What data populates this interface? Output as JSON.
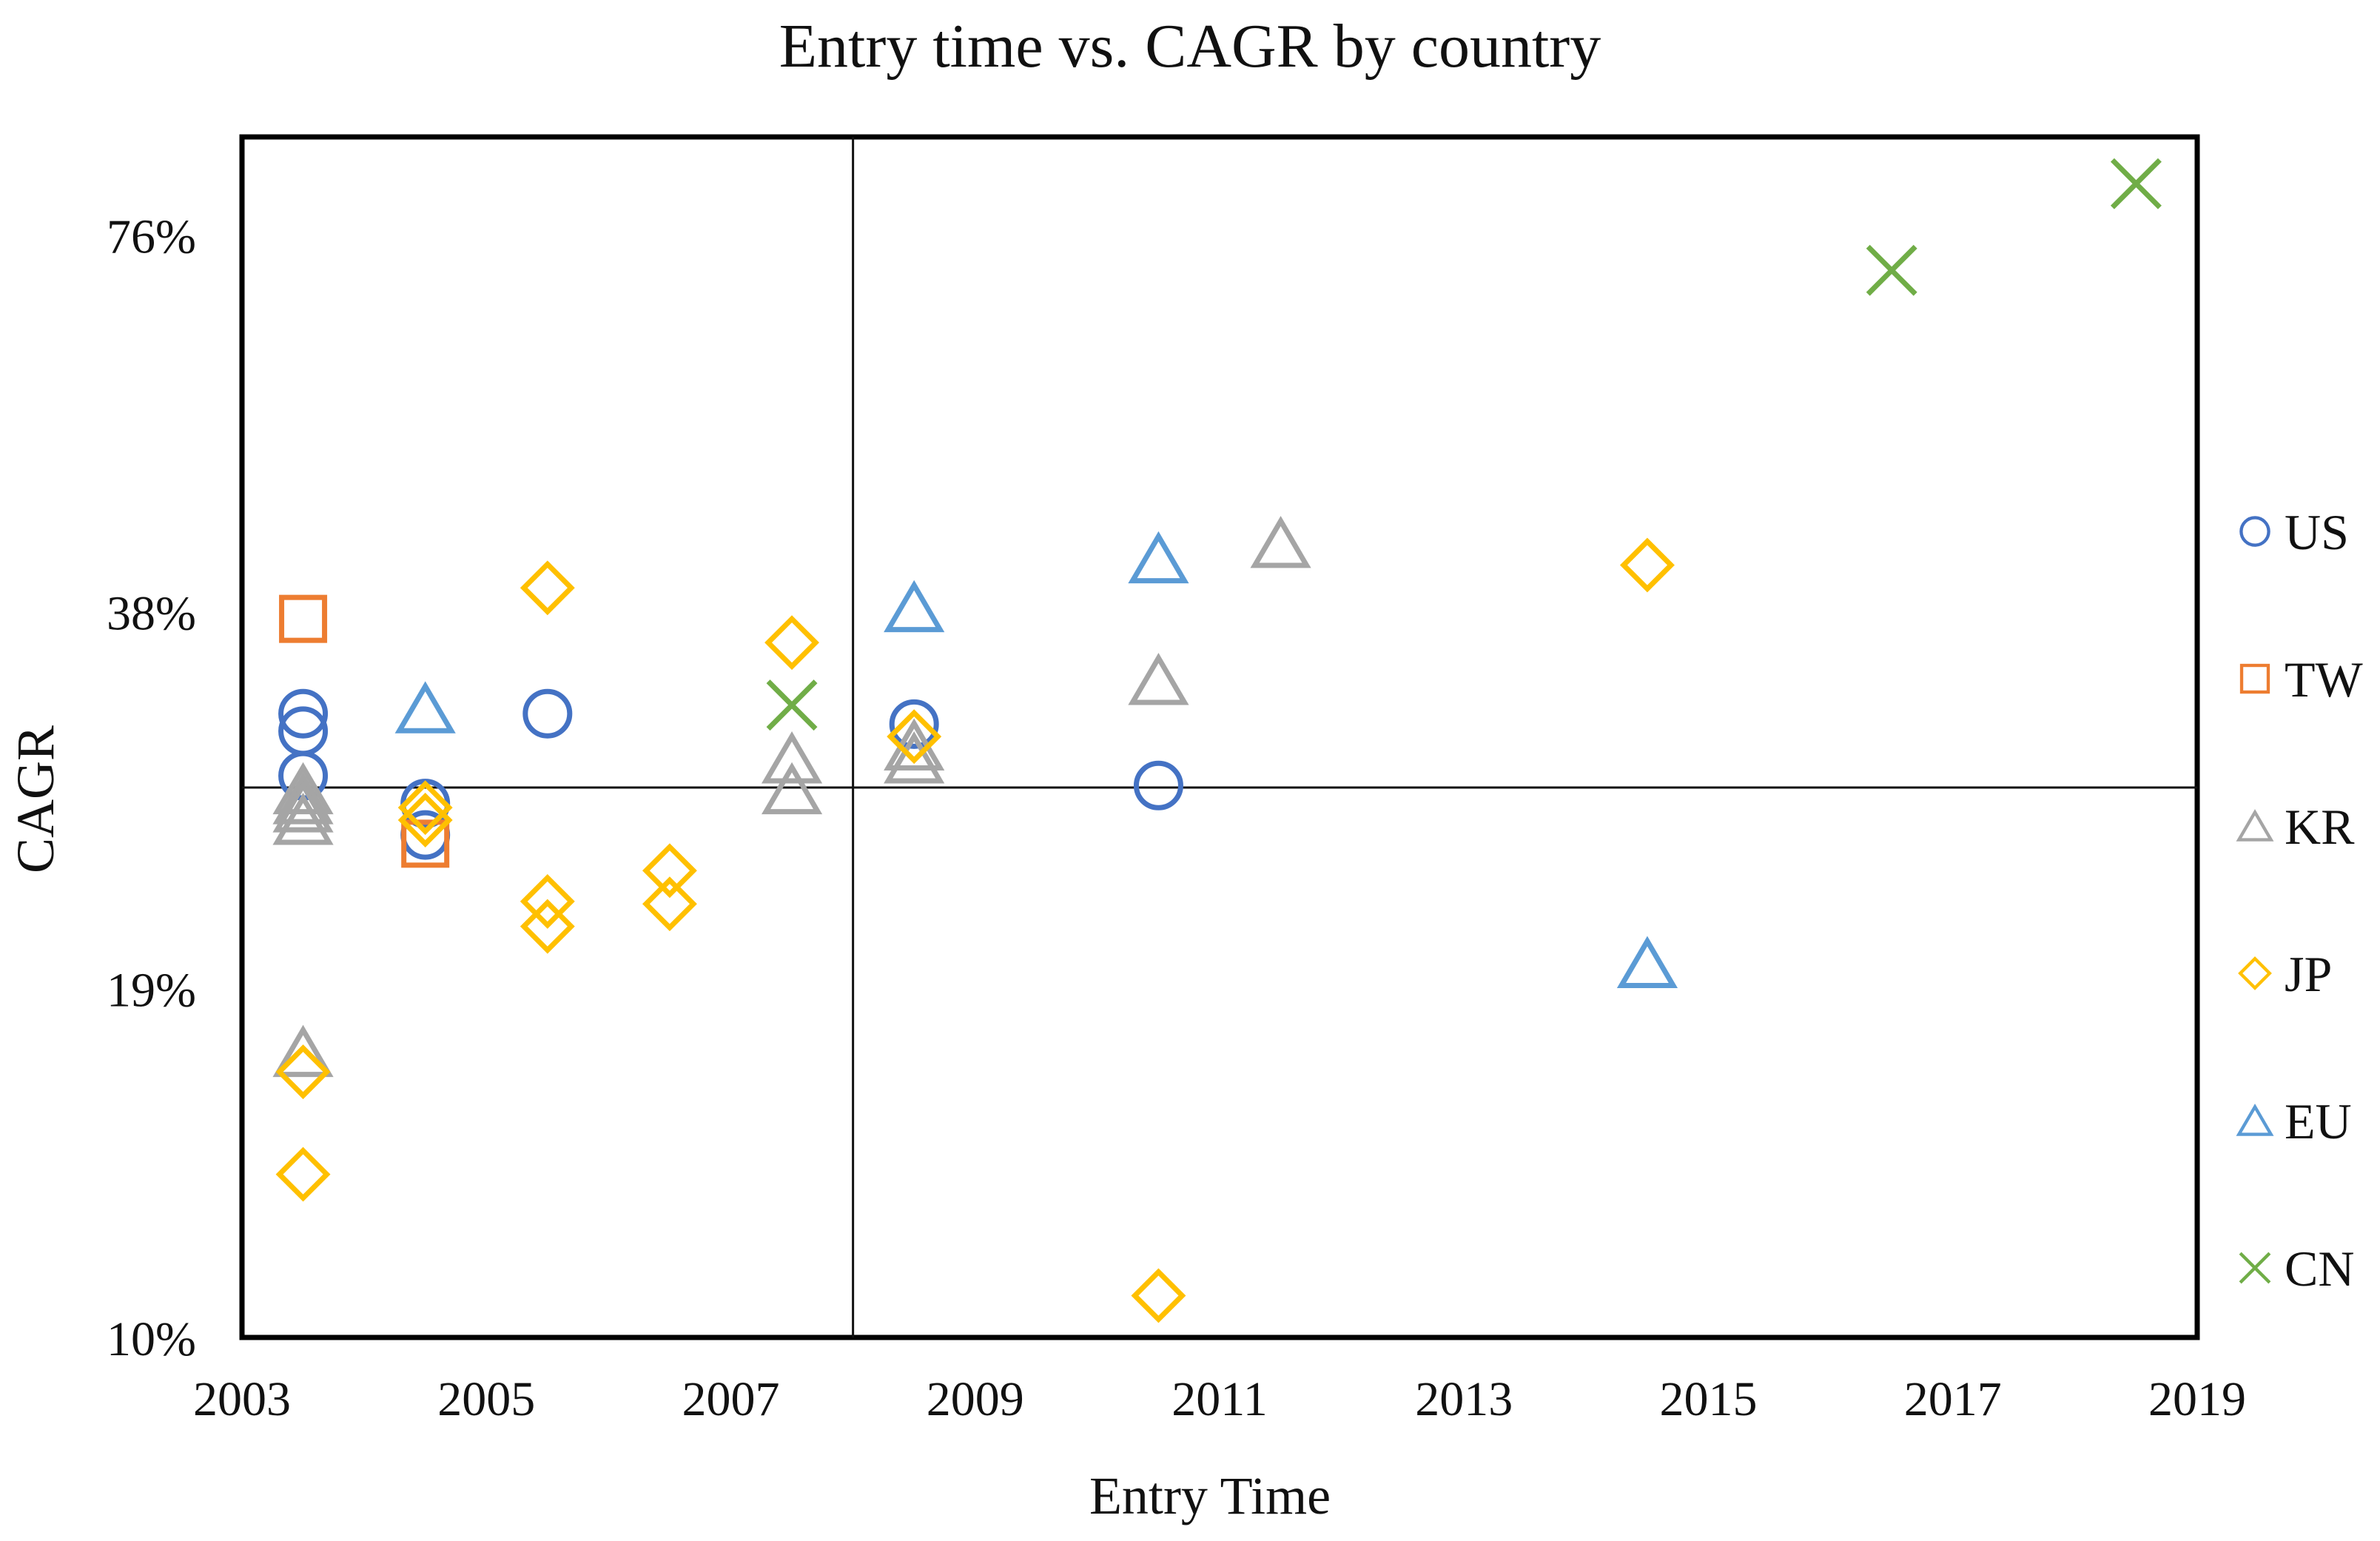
{
  "chart_data": {
    "type": "scatter",
    "title": "Entry time vs. CAGR by country",
    "xlabel": "Entry Time",
    "ylabel": "CAGR",
    "y_scale": "log",
    "xlim": [
      2003,
      2019
    ],
    "ylim": [
      0.1,
      0.91
    ],
    "x_ticks": [
      2003,
      2005,
      2007,
      2009,
      2011,
      2013,
      2015,
      2017,
      2019
    ],
    "x_tick_labels": [
      "2003",
      "2005",
      "2007",
      "2009",
      "2011",
      "2013",
      "2015",
      "2017",
      "2019"
    ],
    "y_ticks": [
      0.1,
      0.19,
      0.38,
      0.76
    ],
    "y_tick_labels": [
      "10%",
      "19%",
      "38%",
      "76%"
    ],
    "reference_lines": {
      "x": 2008,
      "y": 0.275
    },
    "legend_position": "right",
    "series": [
      {
        "name": "US",
        "marker": "circle",
        "color": "#4472C4",
        "points": [
          {
            "x": 2003.5,
            "y": 0.315
          },
          {
            "x": 2003.5,
            "y": 0.305
          },
          {
            "x": 2003.5,
            "y": 0.281
          },
          {
            "x": 2004.5,
            "y": 0.267
          },
          {
            "x": 2004.5,
            "y": 0.252
          },
          {
            "x": 2005.5,
            "y": 0.315
          },
          {
            "x": 2008.5,
            "y": 0.309
          },
          {
            "x": 2010.5,
            "y": 0.276
          }
        ]
      },
      {
        "name": "TW",
        "marker": "square",
        "color": "#ED7D31",
        "points": [
          {
            "x": 2003.5,
            "y": 0.375
          },
          {
            "x": 2004.5,
            "y": 0.248
          }
        ]
      },
      {
        "name": "KR",
        "marker": "triangle",
        "color": "#A5A5A5",
        "points": [
          {
            "x": 2003.5,
            "y": 0.274
          },
          {
            "x": 2003.5,
            "y": 0.269
          },
          {
            "x": 2003.5,
            "y": 0.265
          },
          {
            "x": 2003.5,
            "y": 0.259
          },
          {
            "x": 2003.5,
            "y": 0.169
          },
          {
            "x": 2007.5,
            "y": 0.29
          },
          {
            "x": 2007.5,
            "y": 0.274
          },
          {
            "x": 2008.5,
            "y": 0.297
          },
          {
            "x": 2008.5,
            "y": 0.29
          },
          {
            "x": 2010.5,
            "y": 0.335
          },
          {
            "x": 2011.5,
            "y": 0.431
          }
        ]
      },
      {
        "name": "JP",
        "marker": "diamond",
        "color": "#FFC000",
        "points": [
          {
            "x": 2003.5,
            "y": 0.163
          },
          {
            "x": 2003.5,
            "y": 0.135
          },
          {
            "x": 2004.5,
            "y": 0.265
          },
          {
            "x": 2004.5,
            "y": 0.259
          },
          {
            "x": 2005.5,
            "y": 0.397
          },
          {
            "x": 2005.5,
            "y": 0.223
          },
          {
            "x": 2005.5,
            "y": 0.213
          },
          {
            "x": 2006.5,
            "y": 0.236
          },
          {
            "x": 2006.5,
            "y": 0.222
          },
          {
            "x": 2007.5,
            "y": 0.359
          },
          {
            "x": 2008.5,
            "y": 0.302
          },
          {
            "x": 2010.5,
            "y": 0.108
          },
          {
            "x": 2014.5,
            "y": 0.414
          }
        ]
      },
      {
        "name": "EU",
        "marker": "triangle",
        "color": "#5B9BD5",
        "points": [
          {
            "x": 2004.5,
            "y": 0.318
          },
          {
            "x": 2008.5,
            "y": 0.383
          },
          {
            "x": 2010.5,
            "y": 0.419
          },
          {
            "x": 2014.5,
            "y": 0.199
          }
        ]
      },
      {
        "name": "CN",
        "marker": "x",
        "color": "#70AD47",
        "points": [
          {
            "x": 2007.5,
            "y": 0.32
          },
          {
            "x": 2016.5,
            "y": 0.712
          },
          {
            "x": 2018.5,
            "y": 0.835
          }
        ]
      }
    ]
  }
}
